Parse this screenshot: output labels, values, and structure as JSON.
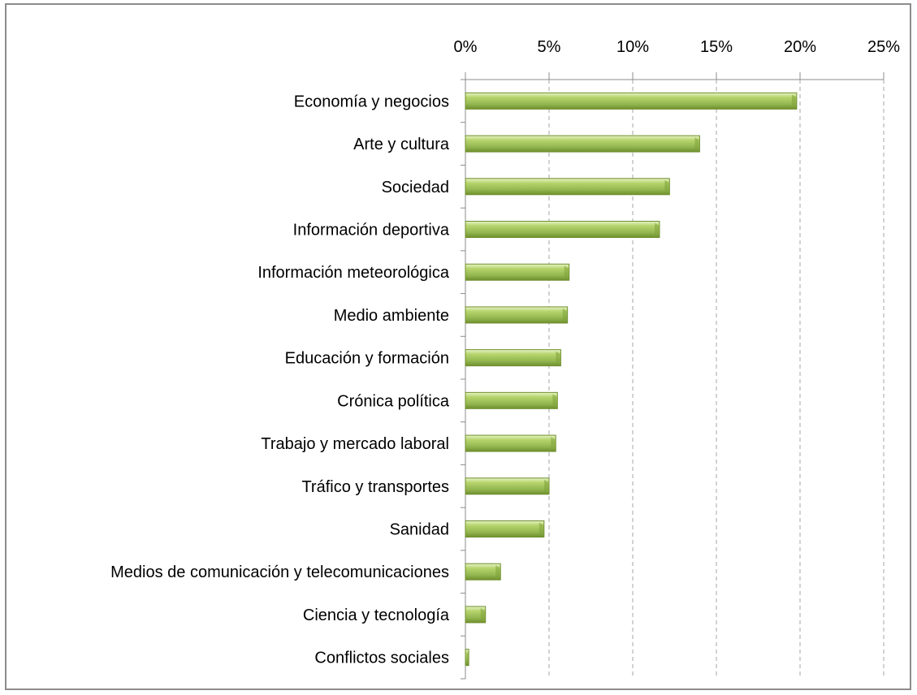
{
  "chart_data": {
    "type": "bar",
    "orientation": "horizontal",
    "categories": [
      "Economía y negocios",
      "Arte y cultura",
      "Sociedad",
      "Información deportiva",
      "Información meteorológica",
      "Medio ambiente",
      "Educación y formación",
      "Crónica política",
      "Trabajo y mercado laboral",
      "Tráfico y transportes",
      "Sanidad",
      "Medios de comunicación y telecomunicaciones",
      "Ciencia y tecnología",
      "Conflictos sociales"
    ],
    "values": [
      19.8,
      14.0,
      12.2,
      11.6,
      6.2,
      6.1,
      5.7,
      5.5,
      5.4,
      5.0,
      4.7,
      2.1,
      1.2,
      0.2
    ],
    "unit": "%",
    "xlim": [
      0,
      25
    ],
    "ticks": [
      0,
      5,
      10,
      15,
      20,
      25
    ],
    "tick_labels": [
      "0%",
      "5%",
      "10%",
      "15%",
      "20%",
      "25%"
    ],
    "x_axis_position": "top",
    "grid": true,
    "grid_style": "dashed-vertical",
    "legend": "none",
    "bar_color": "#9bbb59",
    "bar_color_dark": "#6f8f2e"
  }
}
